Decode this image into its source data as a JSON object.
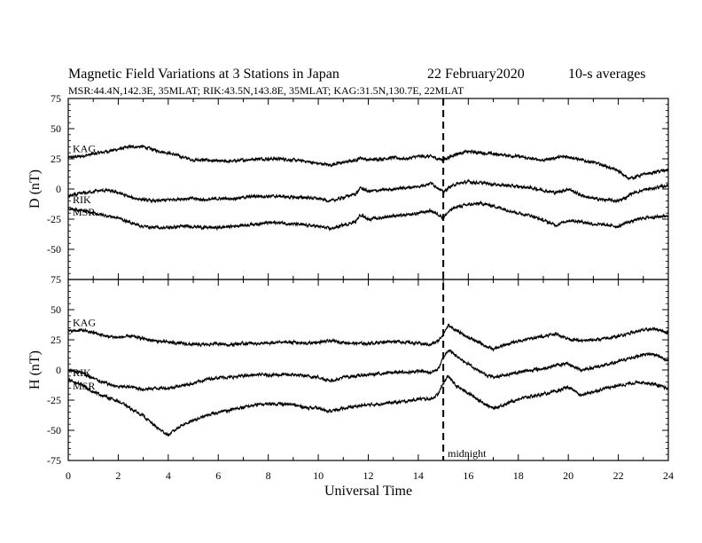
{
  "header": {
    "title": "Magnetic Field Variations at 3 Stations in Japan",
    "date": "22 February2020",
    "averaging": "10-s averages",
    "stations": "MSR:44.4N,142.3E, 35MLAT;  RIK:43.5N,143.8E, 35MLAT;  KAG:31.5N,130.7E, 22MLAT"
  },
  "annotations": {
    "midnight": "midnight",
    "midnight_ut": 15
  },
  "colors": {
    "line": "#000000",
    "background": "#ffffff"
  },
  "chart_data": [
    {
      "type": "line",
      "ylabel": "D (nT)",
      "xlabel": "",
      "xlim": [
        0,
        24
      ],
      "ylim": [
        -75,
        75
      ],
      "yticks": [
        -75,
        -50,
        -25,
        0,
        25,
        50,
        75
      ],
      "series": [
        {
          "name": "KAG",
          "x": [
            0,
            0.5,
            1,
            1.5,
            2,
            2.5,
            3,
            3.5,
            4,
            4.5,
            5,
            5.5,
            6,
            6.5,
            7,
            7.5,
            8,
            8.5,
            9,
            9.5,
            10,
            10.5,
            11,
            11.5,
            11.7,
            12,
            12.5,
            13,
            13.5,
            14,
            14.5,
            14.8,
            15,
            15.2,
            15.5,
            16,
            16.5,
            17,
            17.5,
            18,
            18.5,
            19,
            19.5,
            20,
            20.5,
            21,
            21.5,
            22,
            22.3,
            22.5,
            23,
            23.5,
            24
          ],
          "y": [
            26,
            27,
            29,
            31,
            33,
            35,
            35,
            32,
            30,
            27,
            24,
            24,
            23,
            23,
            24,
            25,
            25,
            25,
            24,
            23,
            21,
            20,
            22,
            24,
            26,
            24,
            25,
            26,
            25,
            27,
            27,
            25,
            24,
            26,
            29,
            31,
            30,
            29,
            28,
            27,
            25,
            24,
            26,
            27,
            24,
            22,
            19,
            15,
            10,
            9,
            12,
            14,
            16
          ]
        },
        {
          "name": "RIK",
          "x": [
            0,
            0.5,
            1,
            1.5,
            2,
            2.5,
            3,
            3.5,
            4,
            4.5,
            5,
            5.5,
            6,
            6.5,
            7,
            7.5,
            8,
            8.5,
            9,
            9.5,
            10,
            10.5,
            11,
            11.5,
            11.7,
            12,
            12.5,
            13,
            13.5,
            14,
            14.5,
            14.8,
            15,
            15.2,
            15.5,
            16,
            16.5,
            17,
            17.5,
            18,
            18.5,
            19,
            19.5,
            20,
            20.5,
            21,
            21.5,
            22,
            22.3,
            22.5,
            23,
            23.5,
            24
          ],
          "y": [
            -6,
            -4,
            -2,
            -1,
            -3,
            -7,
            -9,
            -10,
            -9,
            -8,
            -8,
            -9,
            -8,
            -8,
            -7,
            -6,
            -6,
            -6,
            -7,
            -7,
            -8,
            -10,
            -7,
            -4,
            1,
            -2,
            -1,
            0,
            1,
            2,
            5,
            1,
            -3,
            1,
            4,
            6,
            5,
            4,
            3,
            2,
            1,
            -1,
            -3,
            0,
            -5,
            -8,
            -9,
            -10,
            -7,
            -4,
            -1,
            1,
            3
          ]
        },
        {
          "name": "MSR",
          "x": [
            0,
            0.5,
            1,
            1.5,
            2,
            2.5,
            3,
            3.5,
            4,
            4.5,
            5,
            5.5,
            6,
            6.5,
            7,
            7.5,
            8,
            8.5,
            9,
            9.5,
            10,
            10.5,
            11,
            11.5,
            11.7,
            12,
            12.5,
            13,
            13.5,
            14,
            14.5,
            14.8,
            15,
            15.2,
            15.5,
            16,
            16.5,
            17,
            17.5,
            18,
            18.5,
            19,
            19.5,
            20,
            20.5,
            21,
            21.5,
            22,
            22.3,
            22.5,
            23,
            23.5,
            24
          ],
          "y": [
            -16,
            -18,
            -20,
            -22,
            -24,
            -28,
            -31,
            -32,
            -32,
            -31,
            -31,
            -32,
            -32,
            -31,
            -30,
            -29,
            -28,
            -28,
            -29,
            -30,
            -31,
            -33,
            -30,
            -27,
            -21,
            -25,
            -24,
            -22,
            -22,
            -20,
            -18,
            -21,
            -24,
            -19,
            -15,
            -13,
            -12,
            -14,
            -17,
            -20,
            -22,
            -26,
            -30,
            -26,
            -27,
            -29,
            -30,
            -31,
            -28,
            -27,
            -24,
            -23,
            -22
          ]
        }
      ]
    },
    {
      "type": "line",
      "ylabel": "H (nT)",
      "xlabel": "Universal Time",
      "xlim": [
        0,
        24
      ],
      "ylim": [
        -75,
        75
      ],
      "yticks": [
        -75,
        -50,
        -25,
        0,
        25,
        50,
        75
      ],
      "xticks": [
        0,
        2,
        4,
        6,
        8,
        10,
        12,
        14,
        16,
        18,
        20,
        22,
        24
      ],
      "series": [
        {
          "name": "KAG",
          "x": [
            0,
            0.5,
            1,
            1.5,
            2,
            2.5,
            3,
            3.5,
            4,
            4.5,
            5,
            5.5,
            6,
            6.5,
            7,
            7.5,
            8,
            8.5,
            9,
            9.5,
            10,
            10.5,
            11,
            11.5,
            12,
            12.5,
            13,
            13.5,
            14,
            14.5,
            14.8,
            15,
            15.2,
            15.5,
            16,
            16.5,
            17,
            17.5,
            18,
            18.5,
            19,
            19.5,
            20,
            20.5,
            21,
            21.5,
            22,
            22.5,
            23,
            23.5,
            24
          ],
          "y": [
            32,
            33,
            31,
            28,
            27,
            28,
            26,
            24,
            23,
            22,
            21,
            21,
            22,
            21,
            22,
            22,
            22,
            23,
            23,
            22,
            23,
            24,
            23,
            22,
            22,
            23,
            24,
            23,
            22,
            21,
            24,
            30,
            37,
            33,
            27,
            22,
            17,
            21,
            24,
            26,
            28,
            30,
            26,
            24,
            25,
            26,
            28,
            31,
            33,
            34,
            31
          ]
        },
        {
          "name": "RIK",
          "x": [
            0,
            0.5,
            1,
            1.5,
            2,
            2.5,
            3,
            3.5,
            4,
            4.5,
            5,
            5.5,
            6,
            6.5,
            7,
            7.5,
            8,
            8.5,
            9,
            9.5,
            10,
            10.5,
            11,
            11.5,
            12,
            12.5,
            13,
            13.5,
            14,
            14.5,
            14.8,
            15,
            15.2,
            15.5,
            16,
            16.5,
            17,
            17.5,
            18,
            18.5,
            19,
            19.5,
            20,
            20.5,
            21,
            21.5,
            22,
            22.5,
            23,
            23.5,
            24
          ],
          "y": [
            0,
            -2,
            -7,
            -11,
            -14,
            -14,
            -16,
            -15,
            -15,
            -13,
            -11,
            -8,
            -6,
            -6,
            -5,
            -4,
            -4,
            -4,
            -4,
            -5,
            -6,
            -9,
            -6,
            -5,
            -4,
            -3,
            -2,
            -2,
            -1,
            -2,
            1,
            10,
            17,
            12,
            5,
            -2,
            -6,
            -4,
            -2,
            0,
            1,
            4,
            5,
            0,
            2,
            4,
            7,
            10,
            13,
            13,
            7
          ]
        },
        {
          "name": "MSR",
          "x": [
            0,
            0.5,
            1,
            1.5,
            2,
            2.5,
            3,
            3.5,
            4,
            4.5,
            5,
            5.5,
            6,
            6.5,
            7,
            7.5,
            8,
            8.5,
            9,
            9.5,
            10,
            10.5,
            11,
            11.5,
            12,
            12.5,
            13,
            13.5,
            14,
            14.5,
            14.8,
            15,
            15.2,
            15.5,
            16,
            16.5,
            17,
            17.5,
            18,
            18.5,
            19,
            19.5,
            20,
            20.5,
            21,
            21.5,
            22,
            22.5,
            23,
            23.5,
            24
          ],
          "y": [
            -8,
            -12,
            -18,
            -22,
            -26,
            -32,
            -38,
            -47,
            -54,
            -46,
            -42,
            -38,
            -35,
            -33,
            -31,
            -29,
            -28,
            -28,
            -29,
            -31,
            -32,
            -34,
            -32,
            -30,
            -29,
            -28,
            -27,
            -26,
            -24,
            -24,
            -20,
            -11,
            -5,
            -13,
            -19,
            -26,
            -32,
            -28,
            -24,
            -22,
            -20,
            -18,
            -14,
            -21,
            -18,
            -15,
            -13,
            -11,
            -10,
            -12,
            -16
          ]
        }
      ]
    }
  ]
}
